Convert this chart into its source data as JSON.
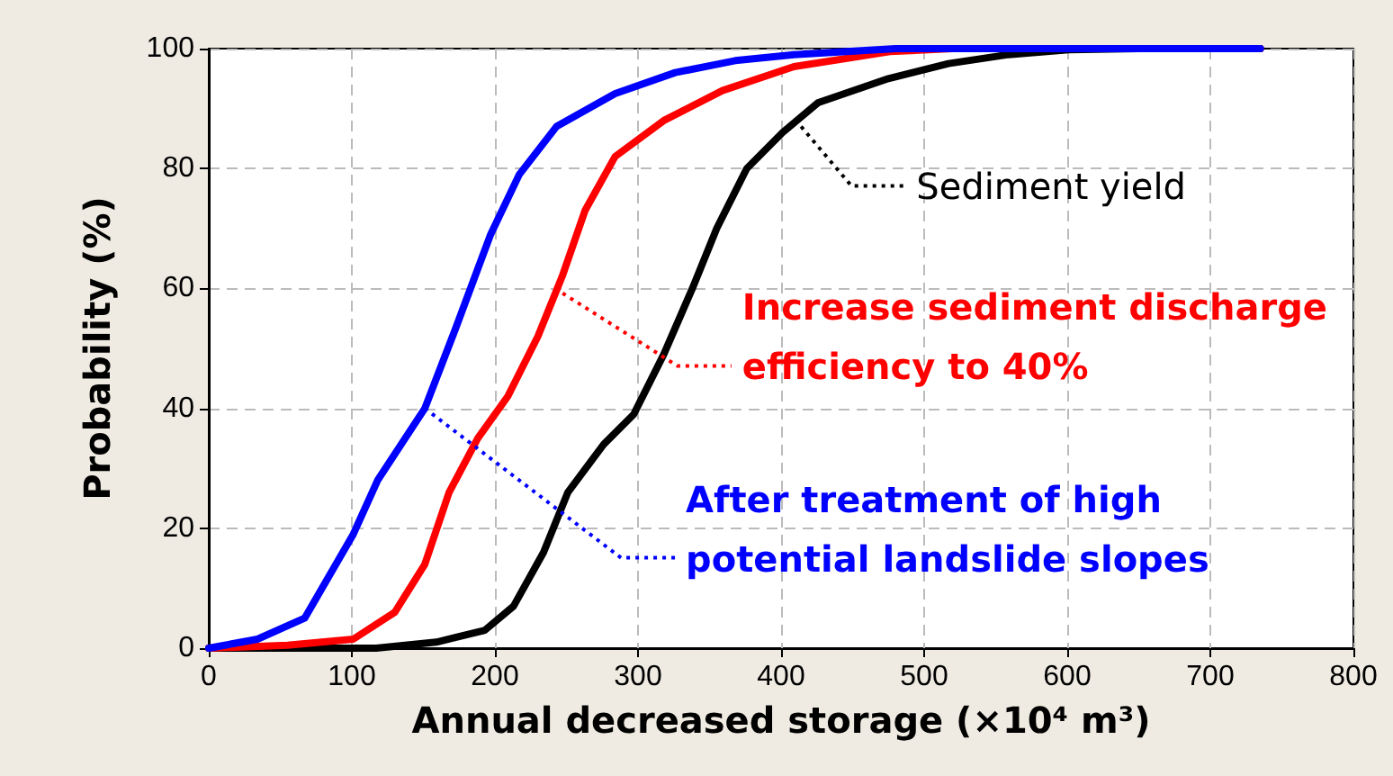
{
  "chart_data": {
    "type": "line",
    "xlabel": "Annual decreased storage (×10⁴ m³)",
    "ylabel": "Probability (%)",
    "xlim": [
      0,
      800
    ],
    "xticks": [
      0,
      100,
      200,
      300,
      400,
      500,
      600,
      700,
      800
    ],
    "ylim": [
      0,
      100
    ],
    "yticks": [
      0,
      20,
      40,
      60,
      80,
      100
    ],
    "grid": true,
    "marker": "none",
    "line_style": "solid",
    "series": [
      {
        "color": "#000000",
        "x": [
          0,
          117,
          159,
          193,
          213,
          234,
          251,
          276,
          297,
          318,
          338,
          355,
          376,
          401,
          426,
          475,
          517,
          559,
          601,
          650,
          735
        ],
        "values": [
          0,
          0,
          1,
          3,
          7,
          16,
          26,
          34,
          39,
          49,
          60,
          70,
          80,
          86,
          91,
          95,
          97.5,
          99,
          99.8,
          100,
          100
        ]
      },
      {
        "color": "#ff0000",
        "x": [
          0,
          55,
          101,
          130,
          151,
          168,
          188,
          209,
          230,
          247,
          263,
          284,
          318,
          359,
          409,
          476,
          520,
          735
        ],
        "values": [
          0,
          0.5,
          1.5,
          6,
          14,
          26,
          35,
          42,
          52,
          62,
          73,
          82,
          88,
          93,
          97,
          99.5,
          100,
          100
        ]
      },
      {
        "color": "#0000ff",
        "x": [
          0,
          34,
          67,
          101,
          118,
          151,
          172,
          197,
          217,
          243,
          284,
          326,
          368,
          409,
          480,
          735
        ],
        "values": [
          0,
          1.5,
          5,
          19,
          28,
          40,
          53,
          69,
          79,
          87,
          92.5,
          96,
          98,
          99,
          100,
          100
        ]
      }
    ],
    "annotations": [
      {
        "text": "Sediment yield",
        "x": 414,
        "y": 87
      },
      {
        "text": "Increase sediment discharge\nefficiency to 40%",
        "x": 242,
        "y": 60
      },
      {
        "text": "After treatment of high\npotential landslide slopes",
        "x": 151,
        "y": 40
      }
    ]
  }
}
